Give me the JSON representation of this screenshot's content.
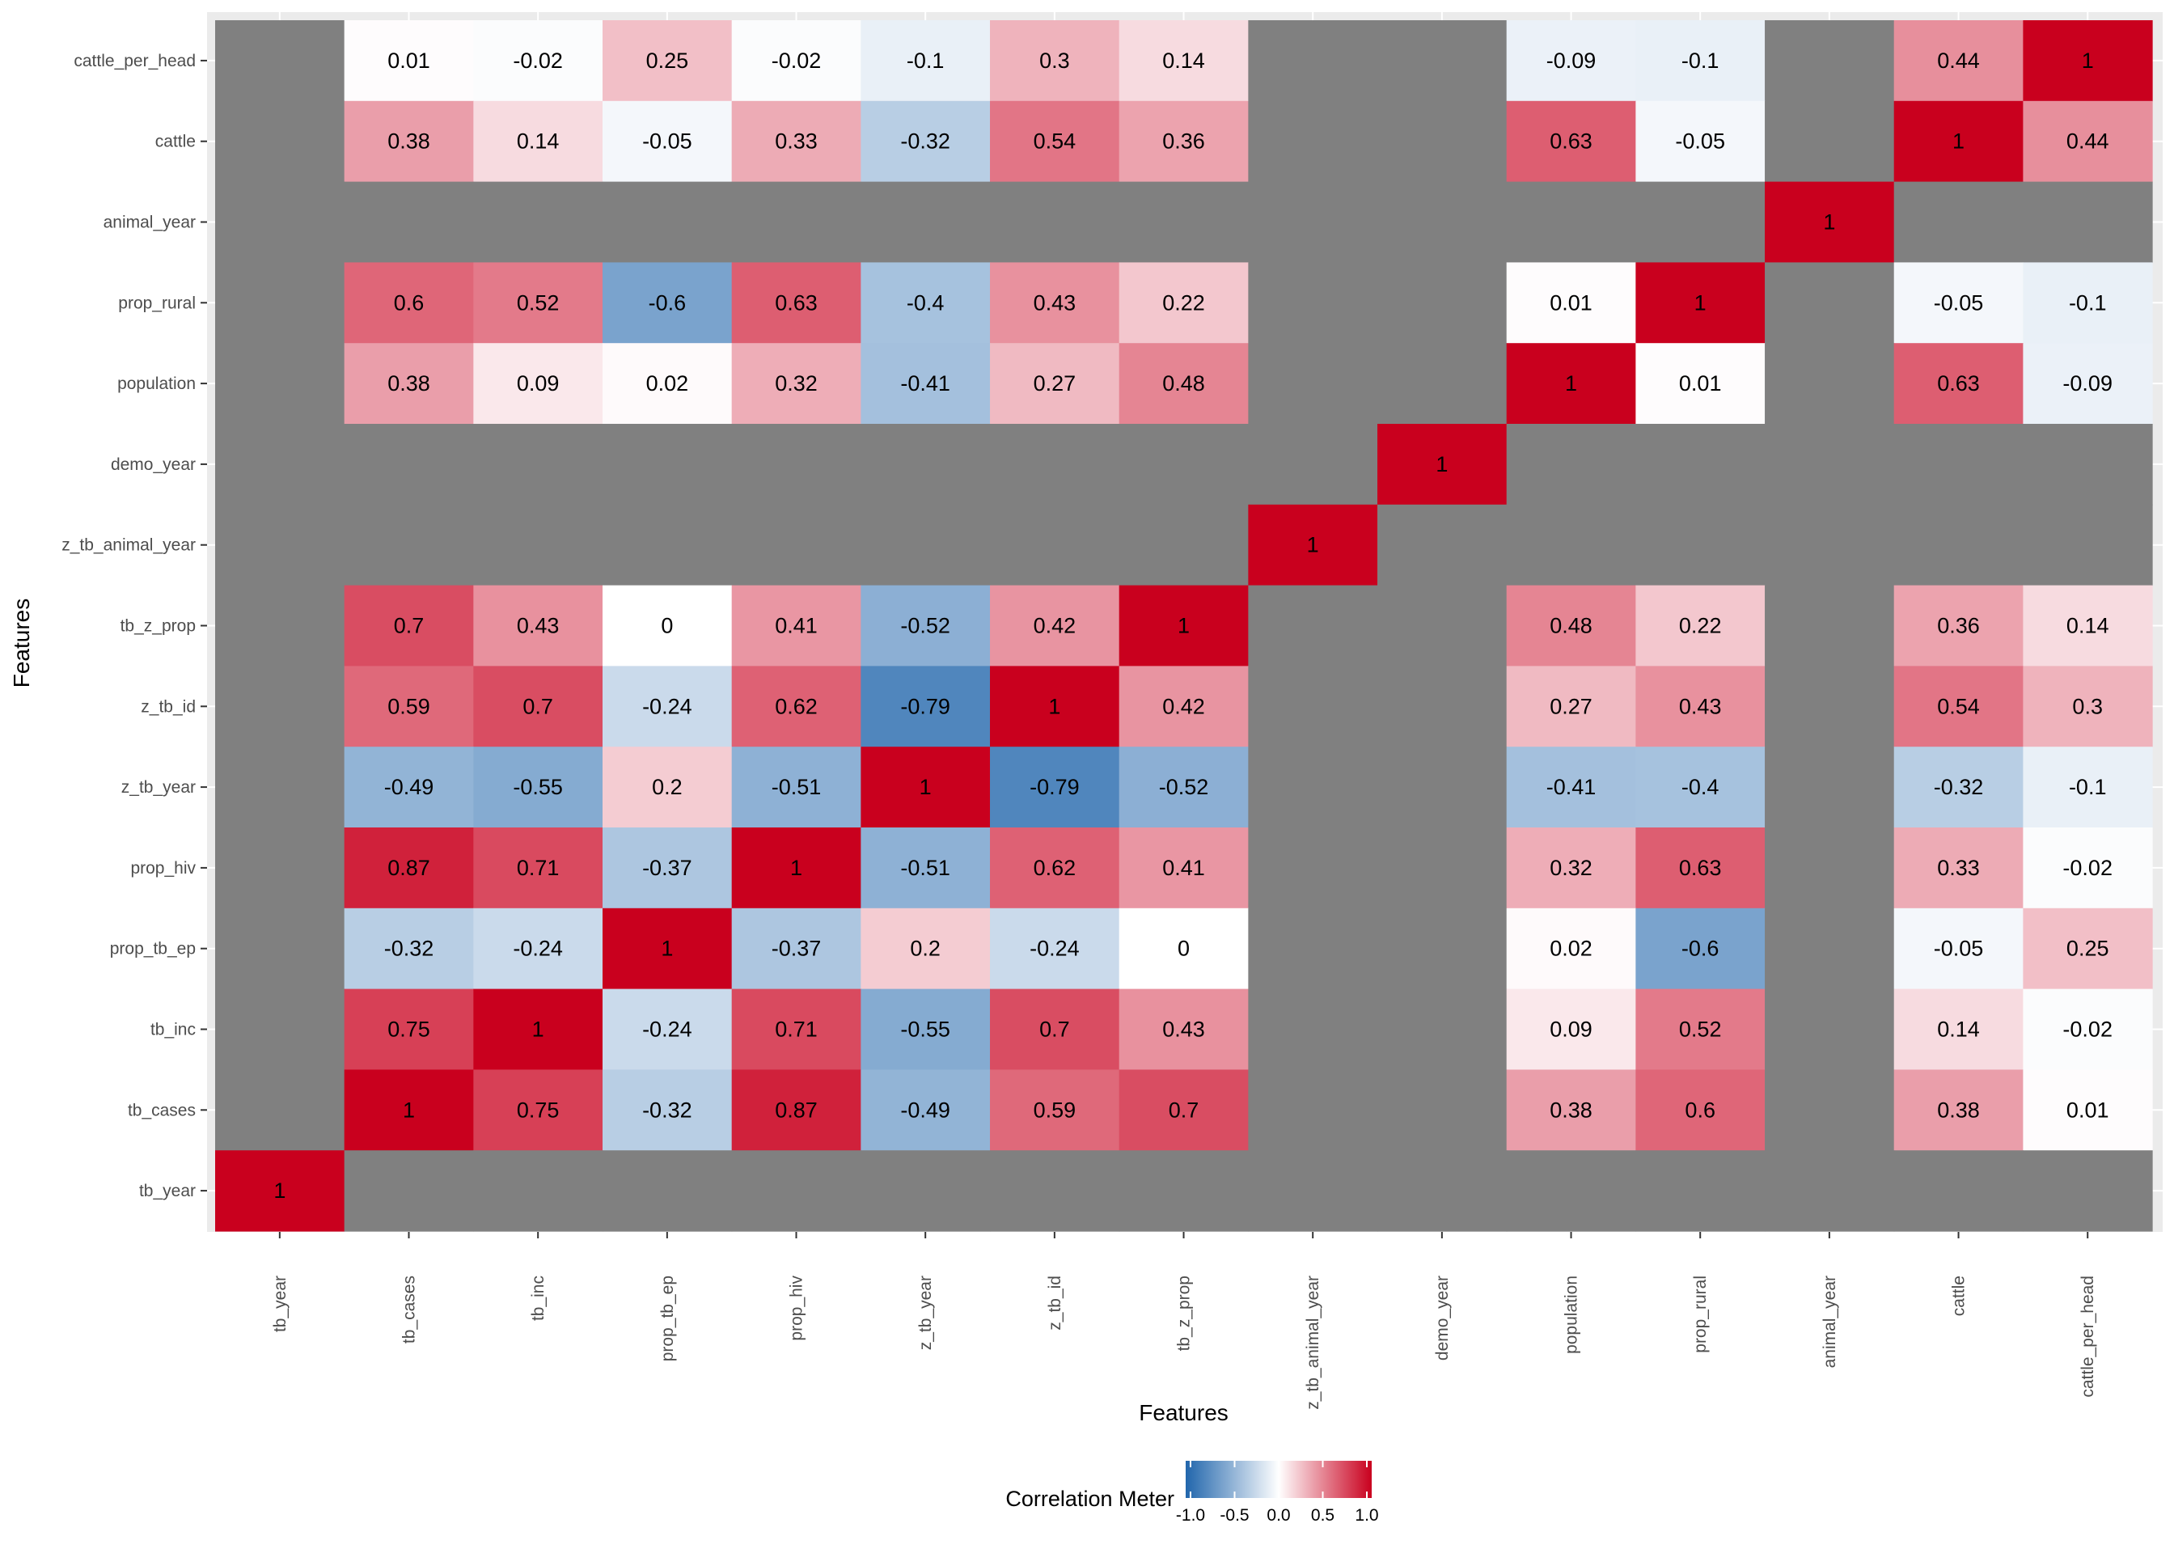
{
  "chart_data": {
    "type": "heatmap",
    "title": "",
    "xlabel": "Features",
    "ylabel": "Features",
    "features": [
      "tb_year",
      "tb_cases",
      "tb_inc",
      "prop_tb_ep",
      "prop_hiv",
      "z_tb_year",
      "z_tb_id",
      "tb_z_prop",
      "z_tb_animal_year",
      "demo_year",
      "population",
      "prop_rural",
      "animal_year",
      "cattle",
      "cattle_per_head"
    ],
    "y_order_top_to_bottom": [
      "cattle_per_head",
      "cattle",
      "animal_year",
      "prop_rural",
      "population",
      "demo_year",
      "z_tb_animal_year",
      "tb_z_prop",
      "z_tb_id",
      "z_tb_year",
      "prop_hiv",
      "prop_tb_ep",
      "tb_inc",
      "tb_cases",
      "tb_year"
    ],
    "missing_color": "#808080",
    "matrix": [
      [
        1,
        null,
        null,
        null,
        null,
        null,
        null,
        null,
        null,
        null,
        null,
        null,
        null,
        null,
        null
      ],
      [
        null,
        1,
        0.75,
        -0.32,
        0.87,
        -0.49,
        0.59,
        0.7,
        null,
        null,
        0.38,
        0.6,
        null,
        0.38,
        0.01
      ],
      [
        null,
        0.75,
        1,
        -0.24,
        0.71,
        -0.55,
        0.7,
        0.43,
        null,
        null,
        0.09,
        0.52,
        null,
        0.14,
        -0.02
      ],
      [
        null,
        -0.32,
        -0.24,
        1,
        -0.37,
        0.2,
        -0.24,
        0,
        null,
        null,
        0.02,
        -0.6,
        null,
        -0.05,
        0.25
      ],
      [
        null,
        0.87,
        0.71,
        -0.37,
        1,
        -0.51,
        0.62,
        0.41,
        null,
        null,
        0.32,
        0.63,
        null,
        0.33,
        -0.02
      ],
      [
        null,
        -0.49,
        -0.55,
        0.2,
        -0.51,
        1,
        -0.79,
        -0.52,
        null,
        null,
        -0.41,
        -0.4,
        null,
        -0.32,
        -0.1
      ],
      [
        null,
        0.59,
        0.7,
        -0.24,
        0.62,
        -0.79,
        1,
        0.42,
        null,
        null,
        0.27,
        0.43,
        null,
        0.54,
        0.3
      ],
      [
        null,
        0.7,
        0.43,
        0,
        0.41,
        -0.52,
        0.42,
        1,
        null,
        null,
        0.48,
        0.22,
        null,
        0.36,
        0.14
      ],
      [
        null,
        null,
        null,
        null,
        null,
        null,
        null,
        null,
        1,
        null,
        null,
        null,
        null,
        null,
        null
      ],
      [
        null,
        null,
        null,
        null,
        null,
        null,
        null,
        null,
        null,
        1,
        null,
        null,
        null,
        null,
        null
      ],
      [
        null,
        0.38,
        0.09,
        0.02,
        0.32,
        -0.41,
        0.27,
        0.48,
        null,
        null,
        1,
        0.01,
        null,
        0.63,
        -0.09
      ],
      [
        null,
        0.6,
        0.52,
        -0.6,
        0.63,
        -0.4,
        0.43,
        0.22,
        null,
        null,
        0.01,
        1,
        null,
        -0.05,
        -0.1
      ],
      [
        null,
        null,
        null,
        null,
        null,
        null,
        null,
        null,
        null,
        null,
        null,
        null,
        1,
        null,
        null
      ],
      [
        null,
        0.38,
        0.14,
        -0.05,
        0.33,
        -0.32,
        0.54,
        0.36,
        null,
        null,
        0.63,
        -0.05,
        null,
        1,
        0.44
      ],
      [
        null,
        0.01,
        -0.02,
        0.25,
        -0.02,
        -0.1,
        0.3,
        0.14,
        null,
        null,
        -0.09,
        -0.1,
        null,
        0.44,
        1
      ]
    ],
    "legend": {
      "title": "Correlation Meter",
      "range": [
        -1,
        1
      ],
      "ticks": [
        -1.0,
        -0.5,
        0.0,
        0.5,
        1.0
      ],
      "tick_labels": [
        "-1.0",
        "-0.5",
        "0.0",
        "0.5",
        "1.0"
      ],
      "placement": "bottom"
    },
    "colors": {
      "low": "#2166AC",
      "mid": "#FFFFFF",
      "high": "#C9001E",
      "panel_background": "#EBEBEB"
    }
  }
}
